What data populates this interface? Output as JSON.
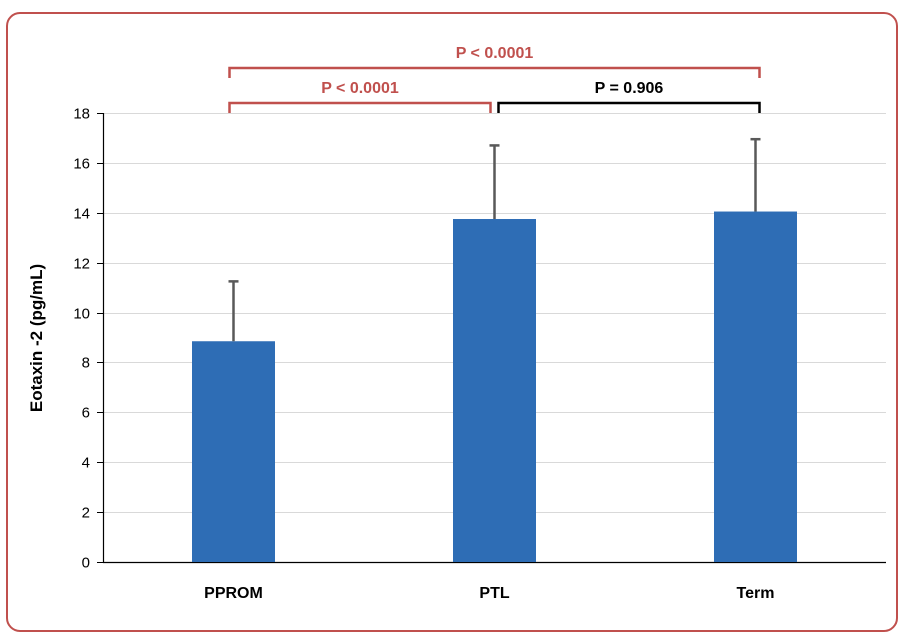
{
  "chart_data": {
    "type": "bar",
    "categories": [
      "PPROM",
      "PTL",
      "Term"
    ],
    "values": [
      8.85,
      13.75,
      14.05
    ],
    "error_plus": [
      2.4,
      2.95,
      2.9
    ],
    "title": "",
    "xlabel": "",
    "ylabel": "Eotaxin -2 (pg/mL)",
    "ylim": [
      0,
      18
    ],
    "yticks": [
      0,
      2,
      4,
      6,
      8,
      10,
      12,
      14,
      16,
      18
    ],
    "grid": true,
    "bar_color": "#2e6db5",
    "comparisons": [
      {
        "from": 0,
        "to": 2,
        "label": "P < 0.0001",
        "color": "#c0504d",
        "level": 2
      },
      {
        "from": 0,
        "to": 1,
        "label": "P < 0.0001",
        "color": "#c0504d",
        "level": 1
      },
      {
        "from": 1,
        "to": 2,
        "label": "P = 0.906",
        "color": "#000000",
        "level": 1
      }
    ]
  },
  "frame_color": "#c0504d"
}
